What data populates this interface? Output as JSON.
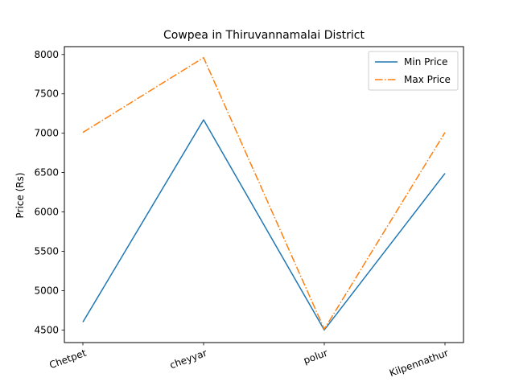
{
  "chart_data": {
    "type": "line",
    "title": "Cowpea in Thiruvannamalai District",
    "xlabel": "",
    "ylabel": "Price (Rs)",
    "categories": [
      "Chetpet",
      "cheyyar",
      "polur",
      "Kilpennathur"
    ],
    "ylim": [
      4340,
      8100
    ],
    "yticks": [
      4500,
      5000,
      5500,
      6000,
      6500,
      7000,
      7500,
      8000
    ],
    "grid": false,
    "legend_position": "top-right",
    "series": [
      {
        "name": "Min Price",
        "values": [
          4600,
          7170,
          4500,
          6490
        ],
        "color": "#1f77b4",
        "style": "solid"
      },
      {
        "name": "Max Price",
        "values": [
          7010,
          7960,
          4510,
          7010
        ],
        "color": "#ff7f0e",
        "style": "dashdot"
      }
    ]
  }
}
